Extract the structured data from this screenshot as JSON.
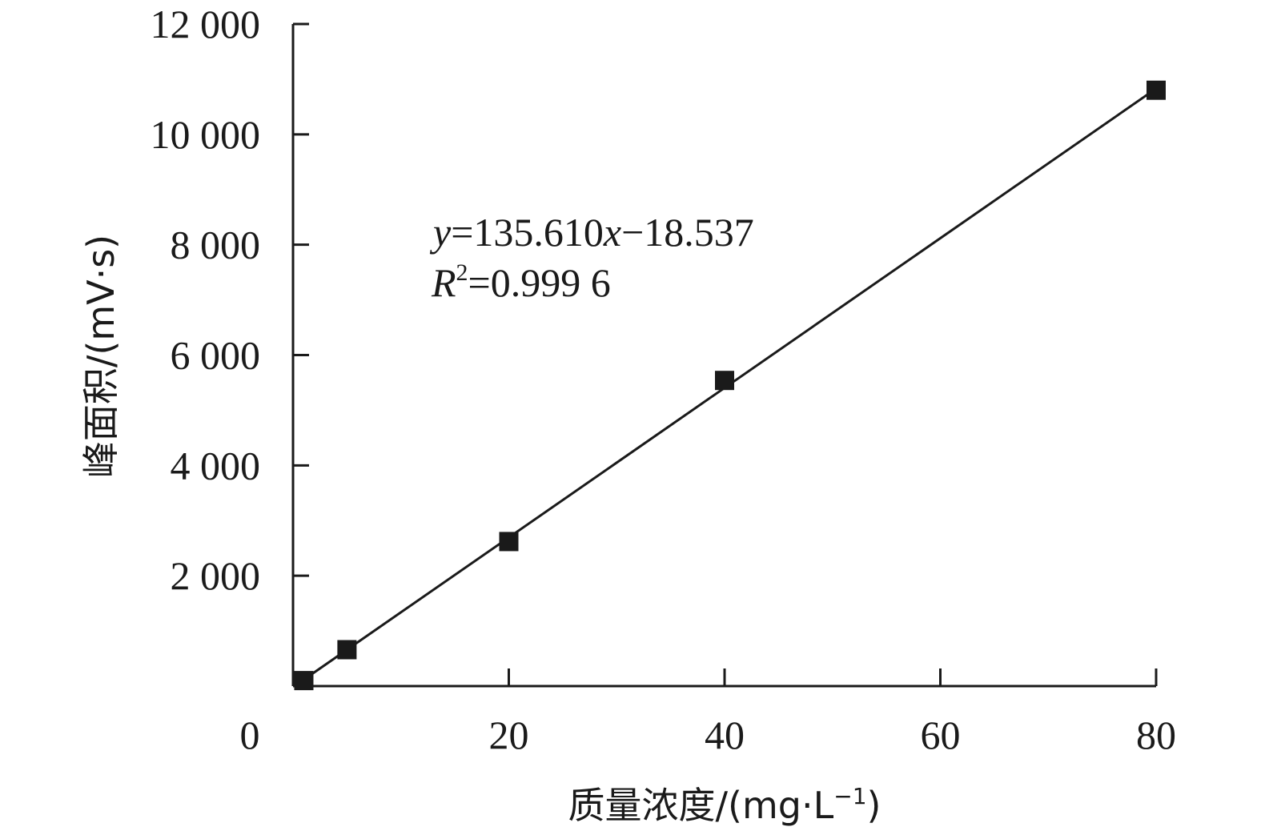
{
  "chart_data": {
    "type": "scatter",
    "xlabel": "质量浓度/(mg·L",
    "xlabel_sup": "−1",
    "xlabel_end": ")",
    "ylabel": "峰面积/(mV·s)",
    "xlim": [
      0,
      80
    ],
    "ylim": [
      0,
      12000
    ],
    "x_ticks": [
      {
        "value": 0,
        "label": "0"
      },
      {
        "value": 20,
        "label": "20"
      },
      {
        "value": 40,
        "label": "40"
      },
      {
        "value": 60,
        "label": "60"
      },
      {
        "value": 80,
        "label": "80"
      }
    ],
    "y_ticks": [
      {
        "value": 2000,
        "label": "2 000"
      },
      {
        "value": 4000,
        "label": "4 000"
      },
      {
        "value": 6000,
        "label": "6 000"
      },
      {
        "value": 8000,
        "label": "8 000"
      },
      {
        "value": 10000,
        "label": "10 000"
      },
      {
        "value": 12000,
        "label": "12 000"
      }
    ],
    "series": [
      {
        "x": [
          1,
          5,
          20,
          40,
          80
        ],
        "y": [
          100,
          660,
          2620,
          5540,
          10800
        ]
      }
    ],
    "fit": {
      "slope": 135.61,
      "intercept": -18.537,
      "x_range": [
        1,
        80
      ]
    },
    "annotation": {
      "eq_y": "y",
      "eq_mid": "=135.610",
      "eq_x": "x",
      "eq_end": "−18.537",
      "r_R": "R",
      "r_sup": "2",
      "r_end": "=0.999 6"
    },
    "grid": false,
    "legend": "none"
  }
}
